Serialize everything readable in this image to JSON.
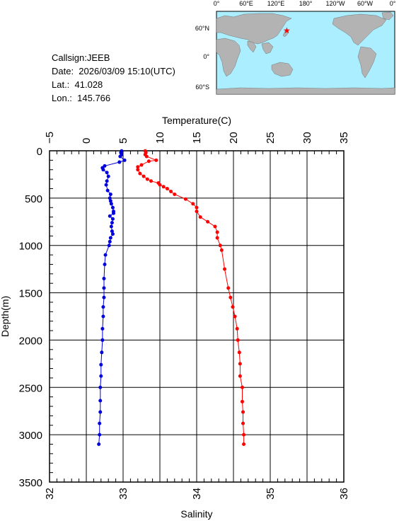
{
  "info": {
    "callsign": "Callsign:JEEB",
    "date": "Date:  2026/03/09 15:10(UTC)",
    "lat": "Lat.:  41.028",
    "lon": "Lon.:  145.766"
  },
  "map": {
    "lon_labels": [
      "0°",
      "60°E",
      "120°E",
      "180°",
      "120°W",
      "60°W",
      "0°"
    ],
    "lat_labels": [
      "60°N",
      "0°",
      "60°S"
    ],
    "station": {
      "lat": 41.028,
      "lon": 145.766
    },
    "colors": {
      "ocean": "#aaeeff",
      "land": "#b3b3b3",
      "marker": "#ff0000"
    }
  },
  "chart_data": {
    "type": "line",
    "ylabel": "Depth(m)",
    "ylim": [
      3500,
      0
    ],
    "y_ticks": [
      "0",
      "500",
      "1000",
      "1500",
      "2000",
      "2500",
      "3000",
      "3500"
    ],
    "x_top": {
      "label": "Temperature(C)",
      "lim": [
        -5,
        35
      ],
      "ticks": [
        "−5",
        "0",
        "5",
        "10",
        "15",
        "20",
        "25",
        "30",
        "35"
      ]
    },
    "x_bottom": {
      "label": "Salinity",
      "lim": [
        32,
        36
      ],
      "ticks": [
        "32",
        "33",
        "34",
        "35",
        "36"
      ]
    },
    "grid": true,
    "series": [
      {
        "axis": "temperature",
        "color": "#ff0000",
        "points": [
          [
            8.0,
            2
          ],
          [
            8.1,
            20
          ],
          [
            8.0,
            40
          ],
          [
            8.2,
            60
          ],
          [
            9.5,
            100
          ],
          [
            8.5,
            110
          ],
          [
            7.5,
            150
          ],
          [
            7.0,
            170
          ],
          [
            7.0,
            200
          ],
          [
            7.3,
            240
          ],
          [
            7.8,
            270
          ],
          [
            8.3,
            300
          ],
          [
            8.8,
            320
          ],
          [
            9.8,
            340
          ],
          [
            10.0,
            360
          ],
          [
            10.5,
            380
          ],
          [
            11.0,
            400
          ],
          [
            11.5,
            430
          ],
          [
            12.0,
            460
          ],
          [
            13.5,
            510
          ],
          [
            14.5,
            560
          ],
          [
            15.0,
            600
          ],
          [
            15.0,
            640
          ],
          [
            15.5,
            700
          ],
          [
            16.5,
            750
          ],
          [
            17.5,
            800
          ],
          [
            17.8,
            860
          ],
          [
            17.8,
            920
          ],
          [
            18.2,
            1000
          ],
          [
            18.4,
            1050
          ],
          [
            18.8,
            1250
          ],
          [
            19.3,
            1450
          ],
          [
            19.6,
            1550
          ],
          [
            19.9,
            1650
          ],
          [
            20.2,
            1750
          ],
          [
            20.5,
            1880
          ],
          [
            20.6,
            2000
          ],
          [
            20.8,
            2130
          ],
          [
            20.9,
            2250
          ],
          [
            20.9,
            2380
          ],
          [
            21.2,
            2500
          ],
          [
            21.2,
            2650
          ],
          [
            21.3,
            2760
          ],
          [
            21.3,
            2880
          ],
          [
            21.4,
            3000
          ],
          [
            21.4,
            3100
          ]
        ]
      },
      {
        "axis": "salinity",
        "color": "#0000dd",
        "points": [
          [
            32.98,
            2
          ],
          [
            32.97,
            20
          ],
          [
            32.98,
            40
          ],
          [
            32.96,
            60
          ],
          [
            33.02,
            100
          ],
          [
            32.95,
            120
          ],
          [
            32.75,
            160
          ],
          [
            32.72,
            180
          ],
          [
            32.73,
            200
          ],
          [
            32.78,
            230
          ],
          [
            32.8,
            270
          ],
          [
            32.78,
            320
          ],
          [
            32.77,
            360
          ],
          [
            32.79,
            420
          ],
          [
            32.83,
            460
          ],
          [
            32.82,
            500
          ],
          [
            32.83,
            530
          ],
          [
            32.84,
            560
          ],
          [
            32.86,
            600
          ],
          [
            32.87,
            640
          ],
          [
            32.87,
            660
          ],
          [
            32.82,
            690
          ],
          [
            32.86,
            720
          ],
          [
            32.85,
            760
          ],
          [
            32.84,
            800
          ],
          [
            32.85,
            850
          ],
          [
            32.86,
            880
          ],
          [
            32.83,
            920
          ],
          [
            32.82,
            960
          ],
          [
            32.81,
            1000
          ],
          [
            32.76,
            1100
          ],
          [
            32.75,
            1200
          ],
          [
            32.74,
            1350
          ],
          [
            32.74,
            1450
          ],
          [
            32.74,
            1550
          ],
          [
            32.73,
            1650
          ],
          [
            32.73,
            1750
          ],
          [
            32.72,
            1880
          ],
          [
            32.72,
            2000
          ],
          [
            32.71,
            2130
          ],
          [
            32.7,
            2260
          ],
          [
            32.7,
            2380
          ],
          [
            32.69,
            2500
          ],
          [
            32.69,
            2640
          ],
          [
            32.69,
            2760
          ],
          [
            32.68,
            2880
          ],
          [
            32.68,
            3000
          ],
          [
            32.67,
            3100
          ]
        ]
      }
    ]
  }
}
